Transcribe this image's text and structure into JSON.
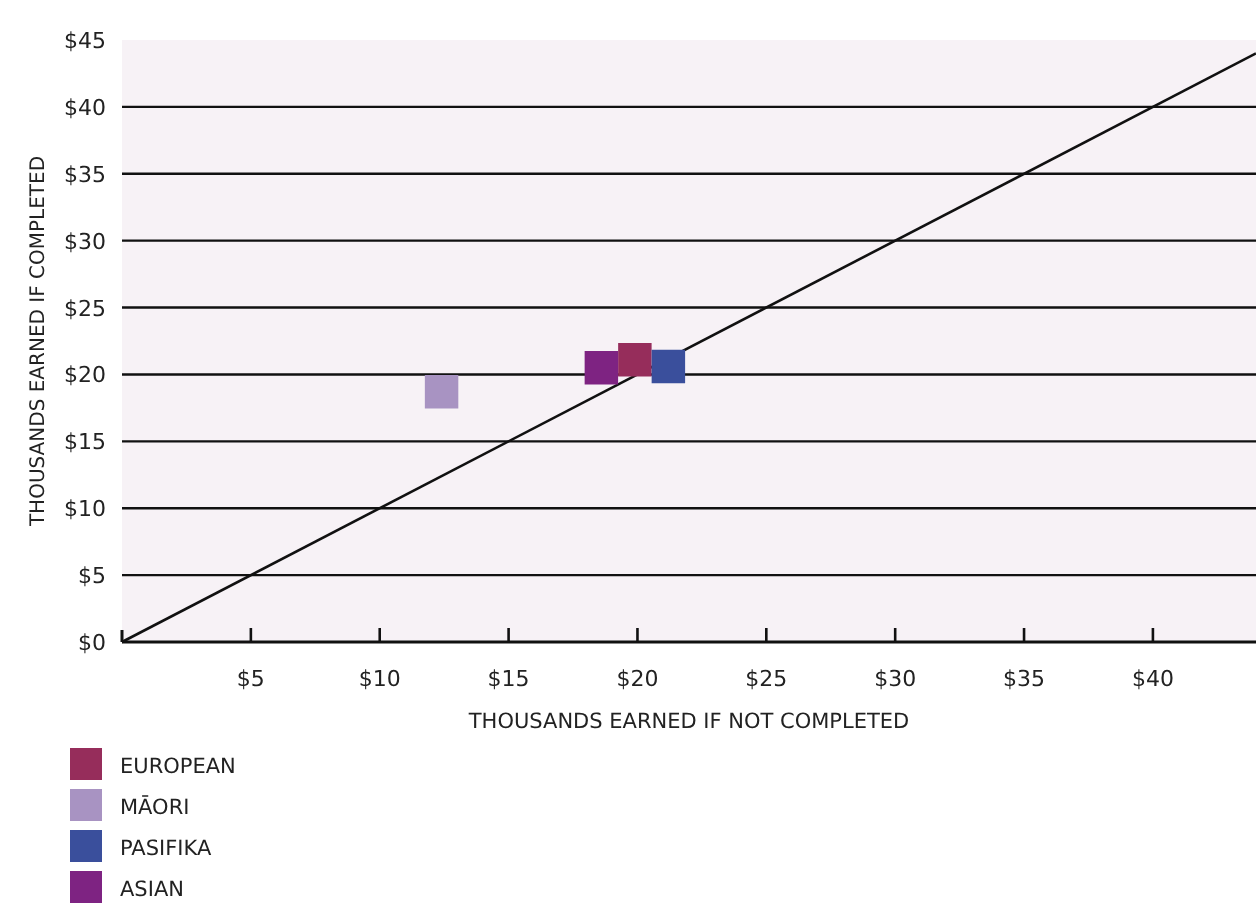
{
  "chart_data": {
    "type": "scatter",
    "xlabel": "THOUSANDS EARNED IF NOT COMPLETED",
    "ylabel": "THOUSANDS EARNED IF COMPLETED",
    "xlim": [
      0,
      44
    ],
    "ylim": [
      0,
      45
    ],
    "xticks": [
      {
        "value": 5,
        "label": "$5"
      },
      {
        "value": 10,
        "label": "$10"
      },
      {
        "value": 15,
        "label": "$15"
      },
      {
        "value": 20,
        "label": "$20"
      },
      {
        "value": 25,
        "label": "$25"
      },
      {
        "value": 30,
        "label": "$30"
      },
      {
        "value": 35,
        "label": "$35"
      },
      {
        "value": 40,
        "label": "$40"
      }
    ],
    "yticks": [
      {
        "value": 0,
        "label": "$0"
      },
      {
        "value": 5,
        "label": "$5"
      },
      {
        "value": 10,
        "label": "$10"
      },
      {
        "value": 15,
        "label": "$15"
      },
      {
        "value": 20,
        "label": "$20"
      },
      {
        "value": 25,
        "label": "$25"
      },
      {
        "value": 30,
        "label": "$30"
      },
      {
        "value": 35,
        "label": "$35"
      },
      {
        "value": 40,
        "label": "$40"
      },
      {
        "value": 45,
        "label": "$45"
      }
    ],
    "grid": "y",
    "legend": "bottom left",
    "marker": "square",
    "series": [
      {
        "type": "line",
        "color": "#111111",
        "x": [
          0,
          44
        ],
        "values": [
          0,
          44
        ],
        "marker": "none"
      },
      {
        "name": "EUROPEAN",
        "color": "#962d5b",
        "x": [
          19.9
        ],
        "values": [
          21.1
        ]
      },
      {
        "name": "MĀORI",
        "color": "#a893c2",
        "x": [
          12.4
        ],
        "values": [
          18.7
        ]
      },
      {
        "name": "PASIFIKA",
        "color": "#3a4f9c",
        "x": [
          21.2
        ],
        "values": [
          20.6
        ]
      },
      {
        "name": "ASIAN",
        "color": "#7e2382",
        "x": [
          18.6
        ],
        "values": [
          20.5
        ]
      }
    ]
  }
}
